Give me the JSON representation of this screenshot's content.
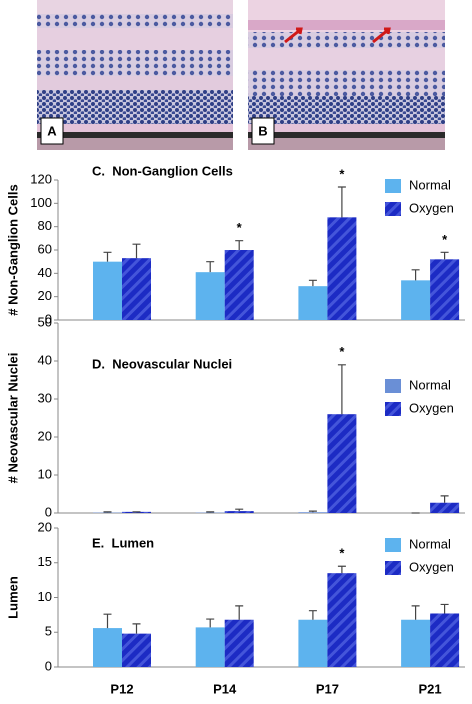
{
  "images": [
    {
      "label": "A"
    },
    {
      "label": "B"
    }
  ],
  "chart_data": [
    {
      "type": "bar",
      "title": "C.  Non-Ganglion Cells",
      "y_label": "# Non-Ganglion Cells",
      "categories": [
        null,
        null,
        null,
        null
      ],
      "series": [
        {
          "name": "Normal",
          "color": "#5db3ee",
          "values": [
            50,
            41,
            29,
            34
          ],
          "errors": [
            8,
            9,
            5,
            9
          ]
        },
        {
          "name": "Oxygen",
          "color": "#1c2bc4",
          "hatch": true,
          "values": [
            53,
            60,
            88,
            52
          ],
          "errors": [
            12,
            8,
            26,
            6
          ],
          "markers": [
            null,
            "*",
            "*",
            "*"
          ]
        }
      ],
      "ylim": [
        0,
        120
      ],
      "yticks": [
        0,
        20,
        40,
        60,
        80,
        100,
        120
      ],
      "legend": "upper right"
    },
    {
      "type": "bar",
      "title": "D.  Neovascular Nuclei",
      "y_label": "# Neovascular Nuclei",
      "categories": [
        null,
        null,
        null,
        null
      ],
      "series": [
        {
          "name": "Normal",
          "color": "#6a8fd6",
          "values": [
            0.1,
            0.1,
            0.2,
            0
          ],
          "errors": [
            0.2,
            0.2,
            0.3,
            0
          ]
        },
        {
          "name": "Oxygen",
          "color": "#1c2bc4",
          "hatch": true,
          "values": [
            0.3,
            0.5,
            26,
            2.7
          ],
          "errors": [
            0,
            0.5,
            13,
            1.8
          ],
          "markers": [
            null,
            null,
            "*",
            null
          ]
        }
      ],
      "ylim": [
        0,
        50
      ],
      "yticks": [
        0,
        10,
        20,
        30,
        40,
        50
      ],
      "legend": "upper right"
    },
    {
      "type": "bar",
      "title": "E.  Lumen",
      "y_label": "Lumen",
      "categories": [
        "P12",
        "P14",
        "P17",
        "P21"
      ],
      "series": [
        {
          "name": "Normal",
          "color": "#5db3ee",
          "values": [
            5.6,
            5.7,
            6.8,
            6.8
          ],
          "errors": [
            2,
            1.2,
            1.3,
            2
          ]
        },
        {
          "name": "Oxygen",
          "color": "#1c2bc4",
          "hatch": true,
          "values": [
            4.8,
            6.8,
            13.5,
            7.7
          ],
          "errors": [
            1.4,
            2,
            1,
            1.3
          ],
          "markers": [
            null,
            null,
            "*",
            null
          ]
        }
      ],
      "ylim": [
        0,
        20
      ],
      "yticks": [
        0,
        5,
        10,
        15,
        20
      ],
      "legend": "upper right"
    }
  ]
}
